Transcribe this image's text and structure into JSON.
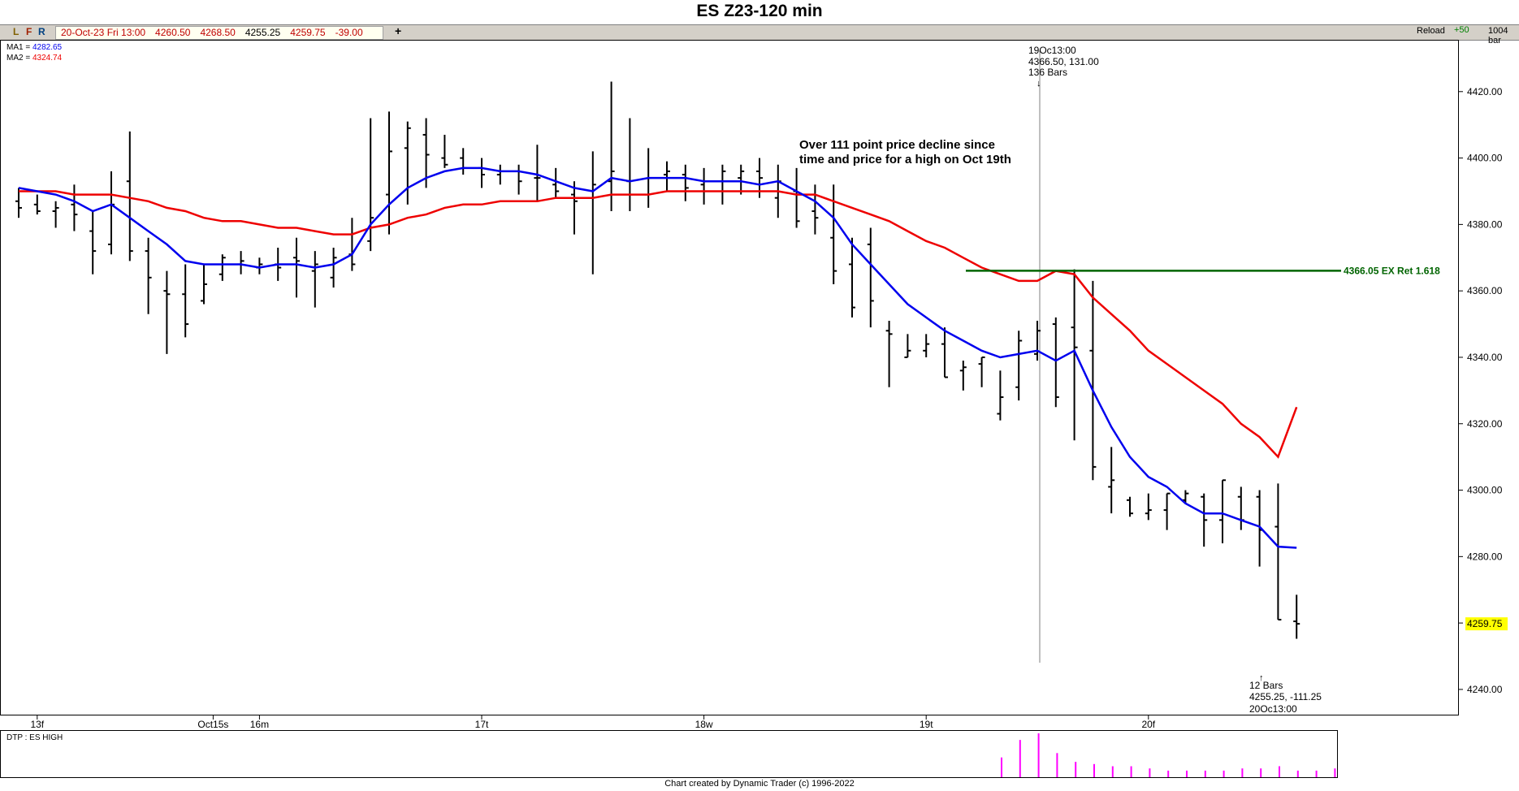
{
  "title": "ES Z23-120 min",
  "toolbar": {
    "btn_l": "L",
    "btn_f": "F",
    "btn_r": "R",
    "quote_date": "20-Oct-23 Fri 13:00",
    "quote_open": "4260.50",
    "quote_high": "4268.50",
    "quote_low": "4255.25",
    "quote_close": "4259.75",
    "quote_change": "-39.00",
    "add_symbol": "+",
    "reload": "Reload",
    "plus_value": "+50",
    "bars_count": "1004 bar"
  },
  "legend": {
    "ma1": "MA1 = 4282.65",
    "ma2": "MA2 = 4324.74"
  },
  "annotations": {
    "top_marker_date": "19Oc13:00",
    "top_marker_values": "4366.50, 131.00",
    "top_marker_bars": "136 Bars",
    "decline_text_line1": "Over 111 point price decline since",
    "decline_text_line2": "time and price for a high on Oct 19th",
    "ret_label": "4366.05 EX Ret 1.618",
    "bottom_marker_bars": "12 Bars",
    "bottom_marker_values": "4255.25, -111.25",
    "bottom_marker_date": "20Oc13:00",
    "last_price": "4259.75"
  },
  "lower_panel": {
    "label": "DTP : ES HIGH"
  },
  "footer": "Chart created by Dynamic Trader  (c) 1996-2022",
  "colors": {
    "ma1": "#0000ee",
    "ma2": "#ee0000",
    "retracement": "#006400",
    "dtp_bars": "#ff00ff",
    "last_price_bg": "#ffff00"
  },
  "chart_data": {
    "type": "ohlc",
    "timeframe": "120 min",
    "y_ticks": [
      4240,
      4260,
      4280,
      4300,
      4320,
      4340,
      4360,
      4380,
      4400,
      4420
    ],
    "y_tick_labels": [
      "4240.00",
      "4260.00",
      "4280.00",
      "4300.00",
      "4320.00",
      "4340.00",
      "4360.00",
      "4380.00",
      "4400.00",
      "4420.00"
    ],
    "ylim": [
      4232.4,
      4435.6
    ],
    "x_labels": [
      "13f",
      "Oct15s",
      "16m",
      "17t",
      "18w",
      "19t",
      "20f"
    ],
    "x_label_bar_index": [
      1,
      10.5,
      13,
      25,
      37,
      49,
      61
    ],
    "bars": [
      {
        "o": 4387,
        "h": 4391,
        "l": 4382,
        "c": 4385
      },
      {
        "o": 4386,
        "h": 4389,
        "l": 4383,
        "c": 4384
      },
      {
        "o": 4384,
        "h": 4387,
        "l": 4379,
        "c": 4385
      },
      {
        "o": 4386,
        "h": 4392,
        "l": 4378,
        "c": 4383
      },
      {
        "o": 4378,
        "h": 4384,
        "l": 4365,
        "c": 4372
      },
      {
        "o": 4374,
        "h": 4396,
        "l": 4371,
        "c": 4386
      },
      {
        "o": 4393,
        "h": 4408,
        "l": 4369,
        "c": 4372
      },
      {
        "o": 4372,
        "h": 4376,
        "l": 4353,
        "c": 4364
      },
      {
        "o": 4360,
        "h": 4366,
        "l": 4341,
        "c": 4359
      },
      {
        "o": 4359,
        "h": 4368,
        "l": 4346,
        "c": 4350
      },
      {
        "o": 4357,
        "h": 4368,
        "l": 4356,
        "c": 4362
      },
      {
        "o": 4365,
        "h": 4371,
        "l": 4363,
        "c": 4370
      },
      {
        "o": 4368,
        "h": 4372,
        "l": 4365,
        "c": 4369
      },
      {
        "o": 4367,
        "h": 4370,
        "l": 4365,
        "c": 4368
      },
      {
        "o": 4368,
        "h": 4373,
        "l": 4363,
        "c": 4367
      },
      {
        "o": 4370,
        "h": 4376,
        "l": 4358,
        "c": 4369
      },
      {
        "o": 4366,
        "h": 4372,
        "l": 4355,
        "c": 4368
      },
      {
        "o": 4364,
        "h": 4373,
        "l": 4361,
        "c": 4370
      },
      {
        "o": 4371,
        "h": 4382,
        "l": 4366,
        "c": 4368
      },
      {
        "o": 4375,
        "h": 4412,
        "l": 4372,
        "c": 4382
      },
      {
        "o": 4389,
        "h": 4414,
        "l": 4377,
        "c": 4402
      },
      {
        "o": 4403,
        "h": 4411,
        "l": 4386,
        "c": 4409
      },
      {
        "o": 4407,
        "h": 4412,
        "l": 4391,
        "c": 4401
      },
      {
        "o": 4400,
        "h": 4407,
        "l": 4397,
        "c": 4398
      },
      {
        "o": 4400,
        "h": 4403,
        "l": 4395,
        "c": 4397
      },
      {
        "o": 4397,
        "h": 4400,
        "l": 4391,
        "c": 4395
      },
      {
        "o": 4395,
        "h": 4398,
        "l": 4392,
        "c": 4396
      },
      {
        "o": 4396,
        "h": 4398,
        "l": 4389,
        "c": 4393
      },
      {
        "o": 4394,
        "h": 4404,
        "l": 4387,
        "c": 4394
      },
      {
        "o": 4392,
        "h": 4397,
        "l": 4388,
        "c": 4390
      },
      {
        "o": 4389,
        "h": 4393,
        "l": 4377,
        "c": 4387
      },
      {
        "o": 4388,
        "h": 4402,
        "l": 4365,
        "c": 4392
      },
      {
        "o": 4393,
        "h": 4423,
        "l": 4384,
        "c": 4396
      },
      {
        "o": 4393,
        "h": 4412,
        "l": 4384,
        "c": 4389
      },
      {
        "o": 4389,
        "h": 4403,
        "l": 4385,
        "c": 4394
      },
      {
        "o": 4395,
        "h": 4399,
        "l": 4390,
        "c": 4396
      },
      {
        "o": 4395,
        "h": 4398,
        "l": 4387,
        "c": 4391
      },
      {
        "o": 4392,
        "h": 4397,
        "l": 4386,
        "c": 4393
      },
      {
        "o": 4393,
        "h": 4398,
        "l": 4386,
        "c": 4396
      },
      {
        "o": 4394,
        "h": 4398,
        "l": 4389,
        "c": 4396
      },
      {
        "o": 4396,
        "h": 4400,
        "l": 4388,
        "c": 4394
      },
      {
        "o": 4388,
        "h": 4398,
        "l": 4382,
        "c": 4393
      },
      {
        "o": 4390,
        "h": 4397,
        "l": 4379,
        "c": 4381
      },
      {
        "o": 4384,
        "h": 4392,
        "l": 4377,
        "c": 4382
      },
      {
        "o": 4376,
        "h": 4392,
        "l": 4362,
        "c": 4366
      },
      {
        "o": 4368,
        "h": 4376,
        "l": 4352,
        "c": 4355
      },
      {
        "o": 4374,
        "h": 4379,
        "l": 4349,
        "c": 4357
      },
      {
        "o": 4348,
        "h": 4351,
        "l": 4331,
        "c": 4347
      },
      {
        "o": 4340,
        "h": 4347,
        "l": 4340,
        "c": 4342
      },
      {
        "o": 4342,
        "h": 4347,
        "l": 4340,
        "c": 4344
      },
      {
        "o": 4344,
        "h": 4349,
        "l": 4334,
        "c": 4334
      },
      {
        "o": 4336,
        "h": 4339,
        "l": 4330,
        "c": 4337
      },
      {
        "o": 4338,
        "h": 4340,
        "l": 4331,
        "c": 4340
      },
      {
        "o": 4323,
        "h": 4336,
        "l": 4321,
        "c": 4328
      },
      {
        "o": 4331,
        "h": 4348,
        "l": 4327,
        "c": 4345
      },
      {
        "o": 4341,
        "h": 4351,
        "l": 4339,
        "c": 4348
      },
      {
        "o": 4350,
        "h": 4352,
        "l": 4325,
        "c": 4328
      },
      {
        "o": 4349,
        "h": 4366.5,
        "l": 4315,
        "c": 4343
      },
      {
        "o": 4342,
        "h": 4363,
        "l": 4303,
        "c": 4307
      },
      {
        "o": 4301,
        "h": 4313,
        "l": 4293,
        "c": 4303
      },
      {
        "o": 4297,
        "h": 4298,
        "l": 4292,
        "c": 4293
      },
      {
        "o": 4293,
        "h": 4299,
        "l": 4291,
        "c": 4294
      },
      {
        "o": 4294,
        "h": 4299,
        "l": 4288,
        "c": 4299
      },
      {
        "o": 4297,
        "h": 4300,
        "l": 4296,
        "c": 4299
      },
      {
        "o": 4298,
        "h": 4299,
        "l": 4283,
        "c": 4291
      },
      {
        "o": 4291,
        "h": 4303,
        "l": 4284,
        "c": 4303
      },
      {
        "o": 4298,
        "h": 4301,
        "l": 4288,
        "c": 4291
      },
      {
        "o": 4298,
        "h": 4300,
        "l": 4277,
        "c": 4288
      },
      {
        "o": 4289,
        "h": 4302,
        "l": 4261,
        "c": 4261
      },
      {
        "o": 4260.5,
        "h": 4268.5,
        "l": 4255.25,
        "c": 4259.75
      }
    ],
    "series": [
      {
        "name": "MA1",
        "values": [
          4391,
          4390,
          4389,
          4387,
          4384,
          4386,
          4382,
          4378,
          4374,
          4369,
          4368,
          4368,
          4368,
          4367,
          4368,
          4368,
          4367,
          4368,
          4371,
          4380,
          4386,
          4391,
          4394,
          4396,
          4397,
          4397,
          4396,
          4396,
          4395,
          4393,
          4391,
          4390,
          4394,
          4393,
          4394,
          4394,
          4394,
          4393,
          4393,
          4393,
          4392,
          4393,
          4390,
          4387,
          4382,
          4374,
          4368,
          4362,
          4356,
          4352,
          4348,
          4345,
          4342,
          4340,
          4341,
          4342,
          4339,
          4342,
          4330,
          4319,
          4310,
          4304,
          4301,
          4296,
          4293,
          4293,
          4291,
          4289,
          4283,
          4282.65
        ]
      },
      {
        "name": "MA2",
        "values": [
          4390,
          4390,
          4390,
          4389,
          4389,
          4389,
          4388,
          4387,
          4385,
          4384,
          4382,
          4381,
          4381,
          4380,
          4379,
          4379,
          4378,
          4377,
          4377,
          4379,
          4380,
          4382,
          4383,
          4385,
          4386,
          4386,
          4387,
          4387,
          4387,
          4388,
          4388,
          4388,
          4389,
          4389,
          4389,
          4390,
          4390,
          4390,
          4390,
          4390,
          4390,
          4390,
          4389,
          4389,
          4387,
          4385,
          4383,
          4381,
          4378,
          4375,
          4373,
          4370,
          4367,
          4365,
          4363,
          4363,
          4366,
          4365,
          4358,
          4353,
          4348,
          4342,
          4338,
          4334,
          4330,
          4326,
          4320,
          4316,
          4310,
          4324.74
        ]
      }
    ],
    "retracement": {
      "price": 4366.05,
      "label": "4366.05 EX Ret 1.618"
    },
    "dtp_values": [
      0.45,
      0.85,
      1.0,
      0.55,
      0.35,
      0.3,
      0.25,
      0.25,
      0.2,
      0.15,
      0.15,
      0.15,
      0.15,
      0.2,
      0.2,
      0.25,
      0.15,
      0.15,
      0.2
    ]
  }
}
